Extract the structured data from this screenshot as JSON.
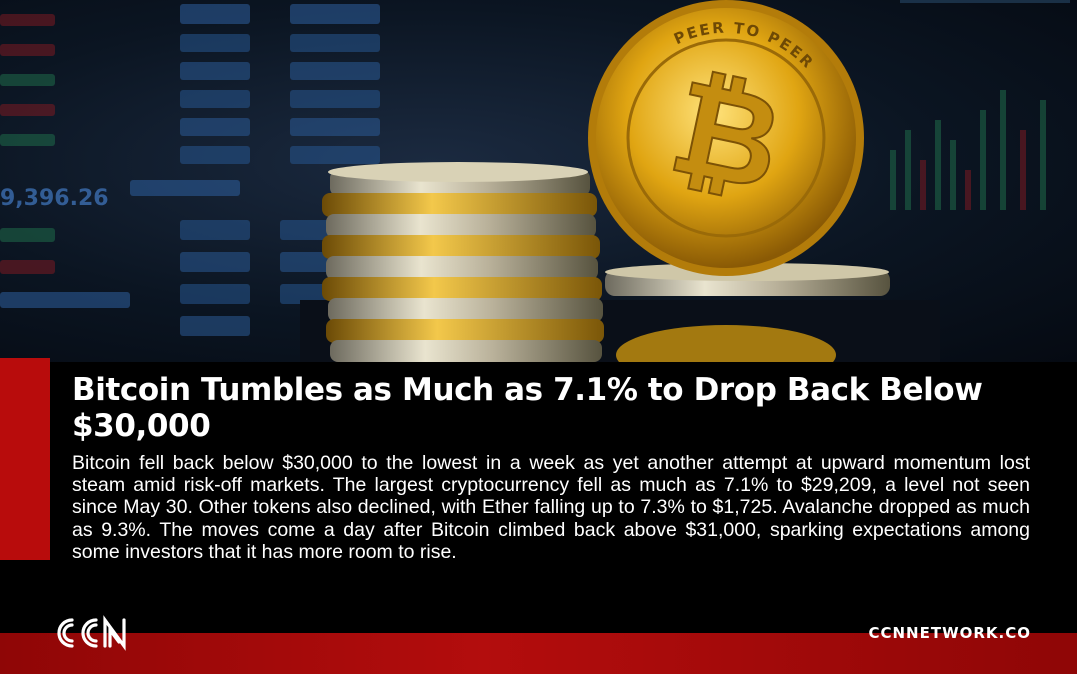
{
  "article": {
    "headline": "Bitcoin Tumbles as Much as 7.1% to Drop Back Below $30,000",
    "body": "Bitcoin fell back below $30,000 to the lowest in a week as yet another attempt at upward momentum lost steam amid risk-off markets. The largest cryptocurrency fell as much as 7.1% to $29,209, a level not seen since May 30. Other tokens also declined, with Ether falling up to 7.3% to $1,725. Avalanche dropped as much as 9.3%. The moves come a day after Bitcoin climbed back above $31,000, sparking expectations among some investors that it has more room to rise."
  },
  "hero": {
    "coin_text": "PEER TO PEER",
    "ticker_value": "9,396.26"
  },
  "branding": {
    "logo_text": "CCN",
    "website": "CCNNETWORK.CO",
    "accent_color": "#b80c0c"
  }
}
